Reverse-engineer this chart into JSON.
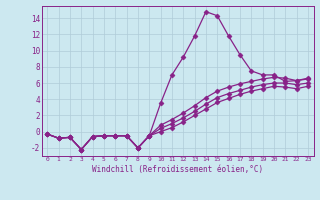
{
  "xlabel": "Windchill (Refroidissement éolien,°C)",
  "background_color": "#cce8f0",
  "grid_color": "#b0ccd8",
  "line_color": "#882288",
  "x_values": [
    0,
    1,
    2,
    3,
    4,
    5,
    6,
    7,
    8,
    9,
    10,
    11,
    12,
    13,
    14,
    15,
    16,
    17,
    18,
    19,
    20,
    21,
    22,
    23
  ],
  "line1": [
    -0.3,
    -0.8,
    -0.7,
    -2.2,
    -0.6,
    -0.5,
    -0.5,
    -0.5,
    -2.0,
    -0.5,
    3.5,
    7.0,
    9.2,
    11.8,
    14.8,
    14.3,
    11.8,
    9.5,
    7.5,
    7.0,
    7.0,
    6.2,
    6.3,
    6.6
  ],
  "line2": [
    -0.3,
    -0.8,
    -0.7,
    -2.2,
    -0.6,
    -0.5,
    -0.5,
    -0.5,
    -2.0,
    -0.5,
    0.8,
    1.5,
    2.3,
    3.2,
    4.2,
    5.0,
    5.5,
    5.9,
    6.2,
    6.5,
    6.7,
    6.6,
    6.3,
    6.5
  ],
  "line3": [
    -0.3,
    -0.8,
    -0.7,
    -2.2,
    -0.6,
    -0.5,
    -0.5,
    -0.5,
    -2.0,
    -0.5,
    0.4,
    1.0,
    1.7,
    2.5,
    3.4,
    4.2,
    4.7,
    5.1,
    5.5,
    5.8,
    6.0,
    6.0,
    5.8,
    6.0
  ],
  "line4": [
    -0.3,
    -0.8,
    -0.7,
    -2.2,
    -0.6,
    -0.5,
    -0.5,
    -0.5,
    -2.0,
    -0.5,
    0.0,
    0.5,
    1.2,
    2.0,
    2.8,
    3.6,
    4.1,
    4.6,
    5.0,
    5.3,
    5.6,
    5.5,
    5.3,
    5.6
  ],
  "ylim": [
    -3.0,
    15.5
  ],
  "yticks": [
    -2,
    0,
    2,
    4,
    6,
    8,
    10,
    12,
    14
  ],
  "xticks": [
    0,
    1,
    2,
    3,
    4,
    5,
    6,
    7,
    8,
    9,
    10,
    11,
    12,
    13,
    14,
    15,
    16,
    17,
    18,
    19,
    20,
    21,
    22,
    23
  ],
  "marker": "D",
  "markersize": 2.5,
  "linewidth": 0.9
}
